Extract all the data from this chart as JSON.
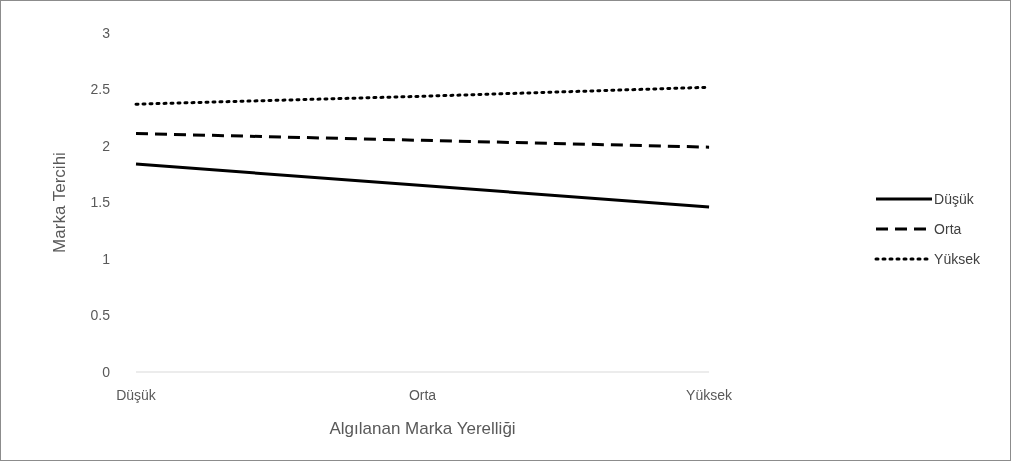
{
  "chart_data": {
    "type": "line",
    "xlabel": "Algılanan Marka Yerelliği",
    "ylabel": "Marka Tercihi",
    "categories": [
      "Düşük",
      "Orta",
      "Yüksek"
    ],
    "series": [
      {
        "name": "Düşük",
        "color": "#000000",
        "line_style": "solid",
        "values": [
          1.84,
          1.65,
          1.46
        ]
      },
      {
        "name": "Orta",
        "color": "#000000",
        "line_style": "dashed",
        "values": [
          2.11,
          2.05,
          1.99
        ]
      },
      {
        "name": "Yüksek",
        "color": "#000000",
        "line_style": "dotted",
        "values": [
          2.37,
          2.44,
          2.52
        ]
      }
    ],
    "ylim": [
      0,
      3
    ],
    "yticks": [
      0,
      0.5,
      1,
      1.5,
      2,
      2.5,
      3
    ],
    "grid": false,
    "legend": "right",
    "marker": "none"
  }
}
